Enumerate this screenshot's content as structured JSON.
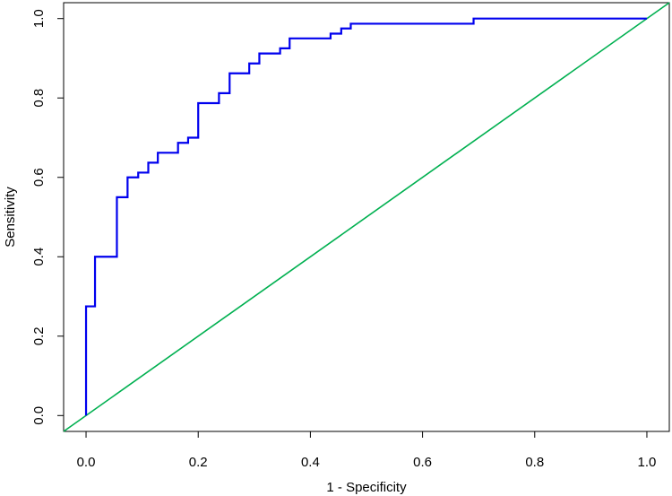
{
  "chart_data": {
    "type": "line",
    "title": "",
    "xlabel": "1 - Specificity",
    "ylabel": "Sensitivity",
    "xlim": [
      -0.04,
      1.04
    ],
    "ylim": [
      -0.04,
      1.04
    ],
    "x_ticks": [
      0.0,
      0.2,
      0.4,
      0.6,
      0.8,
      1.0
    ],
    "x_tick_labels": [
      "0.0",
      "0.2",
      "0.4",
      "0.6",
      "0.8",
      "1.0"
    ],
    "y_ticks": [
      0.0,
      0.2,
      0.4,
      0.6,
      0.8,
      1.0
    ],
    "y_tick_labels": [
      "0.0",
      "0.2",
      "0.4",
      "0.6",
      "0.8",
      "1.0"
    ],
    "grid": false,
    "legend": "none",
    "series": [
      {
        "color": "#0000ee",
        "step": true,
        "x": [
          0.0,
          0.0,
          0.016,
          0.016,
          0.055,
          0.055,
          0.074,
          0.074,
          0.093,
          0.093,
          0.111,
          0.111,
          0.128,
          0.128,
          0.164,
          0.164,
          0.182,
          0.182,
          0.2,
          0.2,
          0.237,
          0.237,
          0.256,
          0.256,
          0.291,
          0.291,
          0.309,
          0.309,
          0.346,
          0.346,
          0.363,
          0.363,
          0.436,
          0.436,
          0.455,
          0.455,
          0.472,
          0.472,
          0.691,
          0.691,
          1.0
        ],
        "y": [
          0.0,
          0.275,
          0.275,
          0.4,
          0.4,
          0.55,
          0.55,
          0.6,
          0.6,
          0.612,
          0.612,
          0.637,
          0.637,
          0.662,
          0.662,
          0.687,
          0.687,
          0.7,
          0.7,
          0.787,
          0.787,
          0.812,
          0.812,
          0.862,
          0.862,
          0.887,
          0.887,
          0.912,
          0.912,
          0.925,
          0.925,
          0.95,
          0.95,
          0.962,
          0.962,
          0.975,
          0.975,
          0.987,
          0.987,
          1.0,
          1.0
        ]
      },
      {
        "color": "#00b050",
        "step": false,
        "x": [
          -0.04,
          1.04
        ],
        "y": [
          -0.04,
          1.04
        ]
      }
    ]
  }
}
